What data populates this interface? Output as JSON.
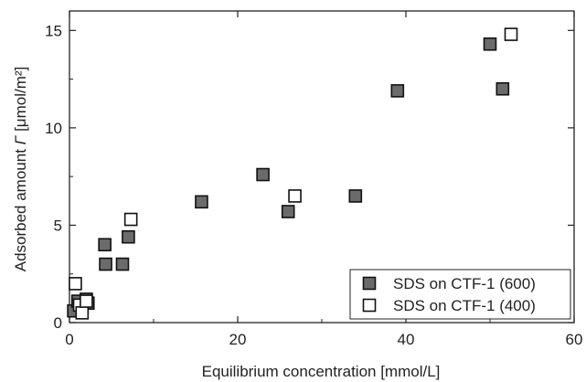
{
  "chart_data": {
    "type": "scatter",
    "title": "",
    "xlabel": "Equilibrium concentration [mmol/L]",
    "ylabel": "Adsorbed amount Γ [μmol/m²]",
    "ylabel_prefix": "Adsorbed amount ",
    "ylabel_symbol": "Γ",
    "ylabel_suffix": " [μmol/m²]",
    "xlim": [
      0,
      60
    ],
    "ylim": [
      0,
      16
    ],
    "xticks": [
      0,
      20,
      40,
      60
    ],
    "yticks": [
      0,
      5,
      10,
      15
    ],
    "grid": false,
    "legend_position": "bottom-right",
    "series": [
      {
        "name": "SDS on CTF-1 (600)",
        "marker": "filled-square",
        "fill": "#6b6b6b",
        "points": [
          [
            0.5,
            0.6
          ],
          [
            1.0,
            1.1
          ],
          [
            1.5,
            0.8
          ],
          [
            2.0,
            1.2
          ],
          [
            2.2,
            1.0
          ],
          [
            4.2,
            4.0
          ],
          [
            4.3,
            3.0
          ],
          [
            6.3,
            3.0
          ],
          [
            7.0,
            4.4
          ],
          [
            15.7,
            6.2
          ],
          [
            23.0,
            7.6
          ],
          [
            26.0,
            5.7
          ],
          [
            34.0,
            6.5
          ],
          [
            39.0,
            11.9
          ],
          [
            50.0,
            14.3
          ],
          [
            51.5,
            12.0
          ]
        ]
      },
      {
        "name": "SDS on CTF-1 (400)",
        "marker": "open-square",
        "fill": "#ffffff",
        "points": [
          [
            0.7,
            2.0
          ],
          [
            1.2,
            0.9
          ],
          [
            1.5,
            0.5
          ],
          [
            2.0,
            1.1
          ],
          [
            7.3,
            5.3
          ],
          [
            26.8,
            6.5
          ],
          [
            52.5,
            14.8
          ]
        ]
      }
    ]
  }
}
